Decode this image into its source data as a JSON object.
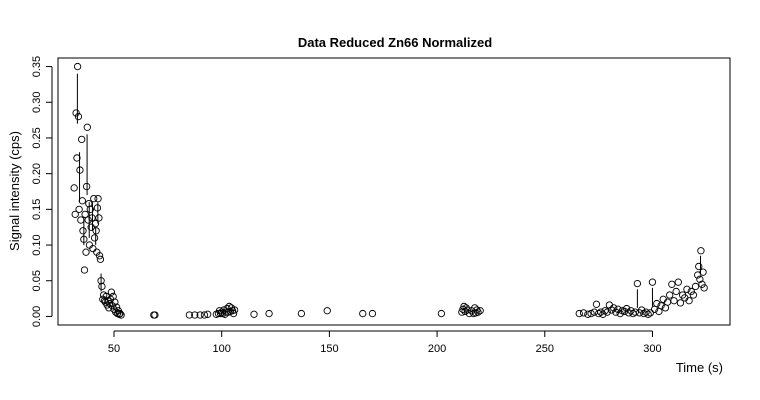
{
  "chart_data": {
    "type": "scatter",
    "title": "Data Reduced Zn66 Normalized",
    "xlabel": "Time (s)",
    "ylabel": "Signal intensity (cps)",
    "xlim": [
      24,
      336
    ],
    "ylim": [
      -0.012,
      0.362
    ],
    "x_ticks": [
      50,
      100,
      150,
      200,
      250,
      300
    ],
    "y_ticks": [
      0.0,
      0.05,
      0.1,
      0.15,
      0.2,
      0.25,
      0.3,
      0.35
    ],
    "y_tick_labels": [
      "0.00",
      "0.05",
      "0.10",
      "0.15",
      "0.20",
      "0.25",
      "0.30",
      "0.35"
    ],
    "grid": false,
    "legend": "none",
    "points": [
      [
        31.5,
        0.18
      ],
      [
        32.0,
        0.143
      ],
      [
        32.4,
        0.285
      ],
      [
        32.8,
        0.222
      ],
      [
        33.1,
        0.35
      ],
      [
        33.5,
        0.28
      ],
      [
        33.8,
        0.15
      ],
      [
        34.2,
        0.205
      ],
      [
        34.6,
        0.135
      ],
      [
        35.0,
        0.248
      ],
      [
        35.3,
        0.162
      ],
      [
        35.6,
        0.12
      ],
      [
        36.0,
        0.108
      ],
      [
        36.3,
        0.065
      ],
      [
        36.6,
        0.143
      ],
      [
        37.0,
        0.09
      ],
      [
        37.3,
        0.182
      ],
      [
        37.6,
        0.265
      ],
      [
        38.0,
        0.135
      ],
      [
        38.3,
        0.158
      ],
      [
        38.6,
        0.1
      ],
      [
        39.0,
        0.15
      ],
      [
        39.4,
        0.125
      ],
      [
        39.8,
        0.138
      ],
      [
        40.2,
        0.095
      ],
      [
        40.6,
        0.165
      ],
      [
        41.0,
        0.11
      ],
      [
        41.4,
        0.13
      ],
      [
        41.7,
        0.12
      ],
      [
        42.0,
        0.09
      ],
      [
        42.3,
        0.152
      ],
      [
        42.6,
        0.165
      ],
      [
        43.0,
        0.138
      ],
      [
        43.3,
        0.085
      ],
      [
        43.7,
        0.08
      ],
      [
        44.0,
        0.05
      ],
      [
        44.4,
        0.042
      ],
      [
        44.8,
        0.024
      ],
      [
        45.2,
        0.03
      ],
      [
        45.6,
        0.022
      ],
      [
        46.0,
        0.02
      ],
      [
        46.4,
        0.028
      ],
      [
        46.8,
        0.016
      ],
      [
        47.2,
        0.022
      ],
      [
        47.6,
        0.012
      ],
      [
        48.0,
        0.018
      ],
      [
        48.4,
        0.024
      ],
      [
        48.8,
        0.034
      ],
      [
        49.2,
        0.015
      ],
      [
        49.6,
        0.028
      ],
      [
        50.0,
        0.01
      ],
      [
        50.4,
        0.02
      ],
      [
        50.8,
        0.006
      ],
      [
        51.2,
        0.013
      ],
      [
        51.6,
        0.004
      ],
      [
        52.0,
        0.008
      ],
      [
        52.4,
        0.003
      ],
      [
        52.8,
        0.004
      ],
      [
        53.3,
        0.002
      ],
      [
        68.5,
        0.002
      ],
      [
        69.0,
        0.002
      ],
      [
        85.0,
        0.002
      ],
      [
        87.5,
        0.002
      ],
      [
        90.0,
        0.002
      ],
      [
        92.0,
        0.002
      ],
      [
        93.5,
        0.003
      ],
      [
        97.5,
        0.003
      ],
      [
        98.5,
        0.004
      ],
      [
        99.0,
        0.008
      ],
      [
        99.5,
        0.004
      ],
      [
        100.0,
        0.006
      ],
      [
        100.5,
        0.004
      ],
      [
        101.0,
        0.009
      ],
      [
        101.5,
        0.003
      ],
      [
        102.0,
        0.006
      ],
      [
        102.5,
        0.011
      ],
      [
        103.0,
        0.006
      ],
      [
        103.5,
        0.014
      ],
      [
        104.0,
        0.007
      ],
      [
        104.5,
        0.012
      ],
      [
        105.0,
        0.008
      ],
      [
        105.5,
        0.004
      ],
      [
        106.0,
        0.009
      ],
      [
        115.0,
        0.003
      ],
      [
        122.0,
        0.004
      ],
      [
        137.0,
        0.004
      ],
      [
        149.0,
        0.008
      ],
      [
        165.5,
        0.004
      ],
      [
        170.0,
        0.004
      ],
      [
        202.0,
        0.004
      ],
      [
        211.5,
        0.006
      ],
      [
        212.0,
        0.01
      ],
      [
        212.5,
        0.014
      ],
      [
        213.0,
        0.007
      ],
      [
        213.5,
        0.012
      ],
      [
        214.0,
        0.009
      ],
      [
        215.0,
        0.004
      ],
      [
        216.0,
        0.008
      ],
      [
        217.0,
        0.004
      ],
      [
        217.5,
        0.012
      ],
      [
        218.0,
        0.005
      ],
      [
        218.5,
        0.009
      ],
      [
        219.0,
        0.006
      ],
      [
        220.0,
        0.008
      ],
      [
        266.0,
        0.004
      ],
      [
        268.0,
        0.005
      ],
      [
        270.0,
        0.003
      ],
      [
        271.5,
        0.004
      ],
      [
        273.0,
        0.006
      ],
      [
        274.0,
        0.017
      ],
      [
        275.0,
        0.004
      ],
      [
        276.0,
        0.006
      ],
      [
        277.0,
        0.003
      ],
      [
        278.0,
        0.008
      ],
      [
        279.0,
        0.006
      ],
      [
        280.0,
        0.016
      ],
      [
        281.0,
        0.009
      ],
      [
        282.0,
        0.012
      ],
      [
        283.0,
        0.006
      ],
      [
        284.0,
        0.01
      ],
      [
        285.0,
        0.004
      ],
      [
        286.0,
        0.008
      ],
      [
        287.0,
        0.007
      ],
      [
        288.0,
        0.011
      ],
      [
        289.0,
        0.005
      ],
      [
        290.0,
        0.008
      ],
      [
        291.0,
        0.004
      ],
      [
        292.0,
        0.006
      ],
      [
        293.0,
        0.046
      ],
      [
        294.0,
        0.005
      ],
      [
        295.0,
        0.009
      ],
      [
        296.0,
        0.004
      ],
      [
        297.0,
        0.006
      ],
      [
        298.0,
        0.003
      ],
      [
        299.0,
        0.005
      ],
      [
        300.0,
        0.048
      ],
      [
        301.0,
        0.01
      ],
      [
        302.0,
        0.018
      ],
      [
        303.0,
        0.007
      ],
      [
        304.0,
        0.015
      ],
      [
        305.0,
        0.024
      ],
      [
        306.0,
        0.012
      ],
      [
        307.0,
        0.02
      ],
      [
        308.0,
        0.03
      ],
      [
        309.0,
        0.045
      ],
      [
        310.0,
        0.022
      ],
      [
        311.0,
        0.035
      ],
      [
        312.0,
        0.048
      ],
      [
        313.0,
        0.019
      ],
      [
        314.0,
        0.03
      ],
      [
        315.0,
        0.026
      ],
      [
        316.0,
        0.038
      ],
      [
        317.0,
        0.022
      ],
      [
        318.0,
        0.035
      ],
      [
        319.0,
        0.03
      ],
      [
        320.0,
        0.042
      ],
      [
        321.0,
        0.058
      ],
      [
        321.5,
        0.07
      ],
      [
        322.0,
        0.052
      ],
      [
        322.5,
        0.092
      ],
      [
        323.0,
        0.045
      ],
      [
        323.5,
        0.062
      ],
      [
        324.0,
        0.04
      ]
    ],
    "segments": [
      [
        33.0,
        0.34,
        33.0,
        0.27
      ],
      [
        34.0,
        0.23,
        34.0,
        0.16
      ],
      [
        36.0,
        0.14,
        36.0,
        0.1
      ],
      [
        37.5,
        0.255,
        37.5,
        0.17
      ],
      [
        38.5,
        0.16,
        38.5,
        0.11
      ],
      [
        40.0,
        0.16,
        40.0,
        0.12
      ],
      [
        41.5,
        0.125,
        41.5,
        0.1
      ],
      [
        42.5,
        0.16,
        42.5,
        0.13
      ],
      [
        44.0,
        0.06,
        44.0,
        0.035
      ],
      [
        293.0,
        0.038,
        293.0,
        0.012
      ],
      [
        300.0,
        0.04,
        300.0,
        0.014
      ],
      [
        322.3,
        0.085,
        322.3,
        0.06
      ]
    ]
  }
}
